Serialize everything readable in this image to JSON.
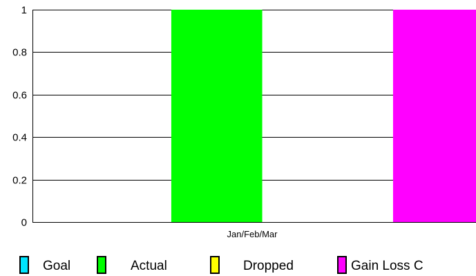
{
  "chart_data": {
    "type": "bar",
    "categories": [
      "Jan/Feb/Mar"
    ],
    "series": [
      {
        "name": "Goal",
        "values": [
          0
        ],
        "color": "#00e5ff"
      },
      {
        "name": "Actual",
        "values": [
          1
        ],
        "color": "#00ff00"
      },
      {
        "name": "Dropped",
        "values": [
          0
        ],
        "color": "#ffff00"
      },
      {
        "name": "Gain Loss C",
        "values": [
          1
        ],
        "color": "#ff00ff"
      }
    ],
    "ylim": [
      0,
      1
    ],
    "yticks": [
      0,
      0.2,
      0.4,
      0.6,
      0.8,
      1
    ],
    "ytick_labels": [
      "0",
      "0.2",
      "0.4",
      "0.6",
      "0.8",
      "1"
    ],
    "grid": true,
    "legend_position": "bottom"
  }
}
